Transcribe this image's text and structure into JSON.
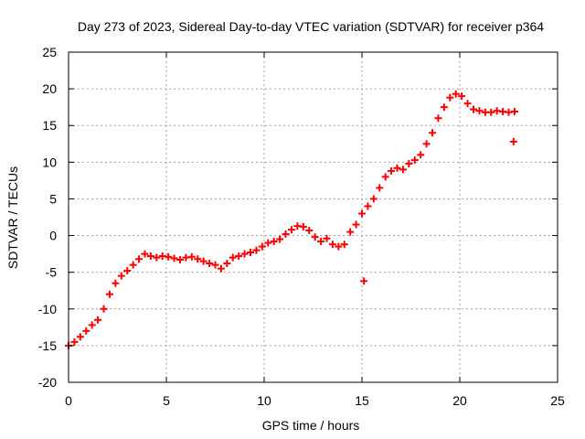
{
  "chart_data": {
    "type": "scatter",
    "title": "Day 273 of 2023, Sidereal Day-to-day VTEC variation (SDTVAR) for receiver p364",
    "xlabel": "GPS time / hours",
    "ylabel": "SDTVAR / TECUs",
    "xlim": [
      0,
      25
    ],
    "ylim": [
      -20,
      25
    ],
    "xticks": [
      0,
      5,
      10,
      15,
      20,
      25
    ],
    "yticks": [
      -20,
      -15,
      -10,
      -5,
      0,
      5,
      10,
      15,
      20,
      25
    ],
    "grid": true,
    "marker_color": "#ff0000",
    "series": [
      {
        "name": "SDTVAR",
        "x": [
          0.0,
          0.3,
          0.6,
          0.9,
          1.2,
          1.5,
          1.8,
          2.1,
          2.4,
          2.7,
          3.0,
          3.3,
          3.6,
          3.9,
          4.2,
          4.5,
          4.8,
          5.1,
          5.4,
          5.7,
          6.0,
          6.3,
          6.6,
          6.9,
          7.2,
          7.5,
          7.8,
          8.1,
          8.4,
          8.7,
          9.0,
          9.3,
          9.6,
          9.9,
          10.2,
          10.5,
          10.8,
          11.1,
          11.4,
          11.7,
          12.0,
          12.3,
          12.6,
          12.9,
          13.2,
          13.5,
          13.8,
          14.1,
          14.4,
          14.7,
          15.0,
          15.3,
          15.6,
          15.9,
          16.2,
          16.5,
          16.8,
          17.1,
          17.4,
          17.7,
          18.0,
          18.3,
          18.6,
          18.9,
          19.2,
          19.5,
          19.8,
          20.1,
          20.4,
          20.7,
          21.0,
          21.3,
          21.6,
          21.9,
          22.2,
          22.5,
          22.8,
          15.1,
          22.75
        ],
        "y": [
          -15.0,
          -14.5,
          -13.8,
          -13.0,
          -12.2,
          -11.5,
          -10.0,
          -8.0,
          -6.5,
          -5.5,
          -4.8,
          -4.0,
          -3.2,
          -2.5,
          -2.8,
          -3.0,
          -2.8,
          -2.9,
          -3.1,
          -3.3,
          -3.0,
          -2.9,
          -3.2,
          -3.5,
          -3.8,
          -4.0,
          -4.5,
          -3.8,
          -3.0,
          -2.8,
          -2.5,
          -2.3,
          -2.0,
          -1.5,
          -1.0,
          -0.8,
          -0.5,
          0.2,
          0.8,
          1.3,
          1.2,
          0.7,
          -0.2,
          -0.8,
          -0.4,
          -1.2,
          -1.5,
          -1.2,
          0.5,
          1.5,
          3.0,
          4.0,
          5.0,
          6.5,
          8.0,
          8.8,
          9.2,
          9.0,
          9.8,
          10.3,
          11.0,
          12.5,
          14.0,
          16.0,
          17.5,
          18.8,
          19.3,
          19.0,
          18.0,
          17.2,
          17.0,
          16.8,
          16.8,
          17.0,
          16.9,
          16.8,
          16.9,
          -6.2,
          12.8
        ]
      }
    ]
  }
}
